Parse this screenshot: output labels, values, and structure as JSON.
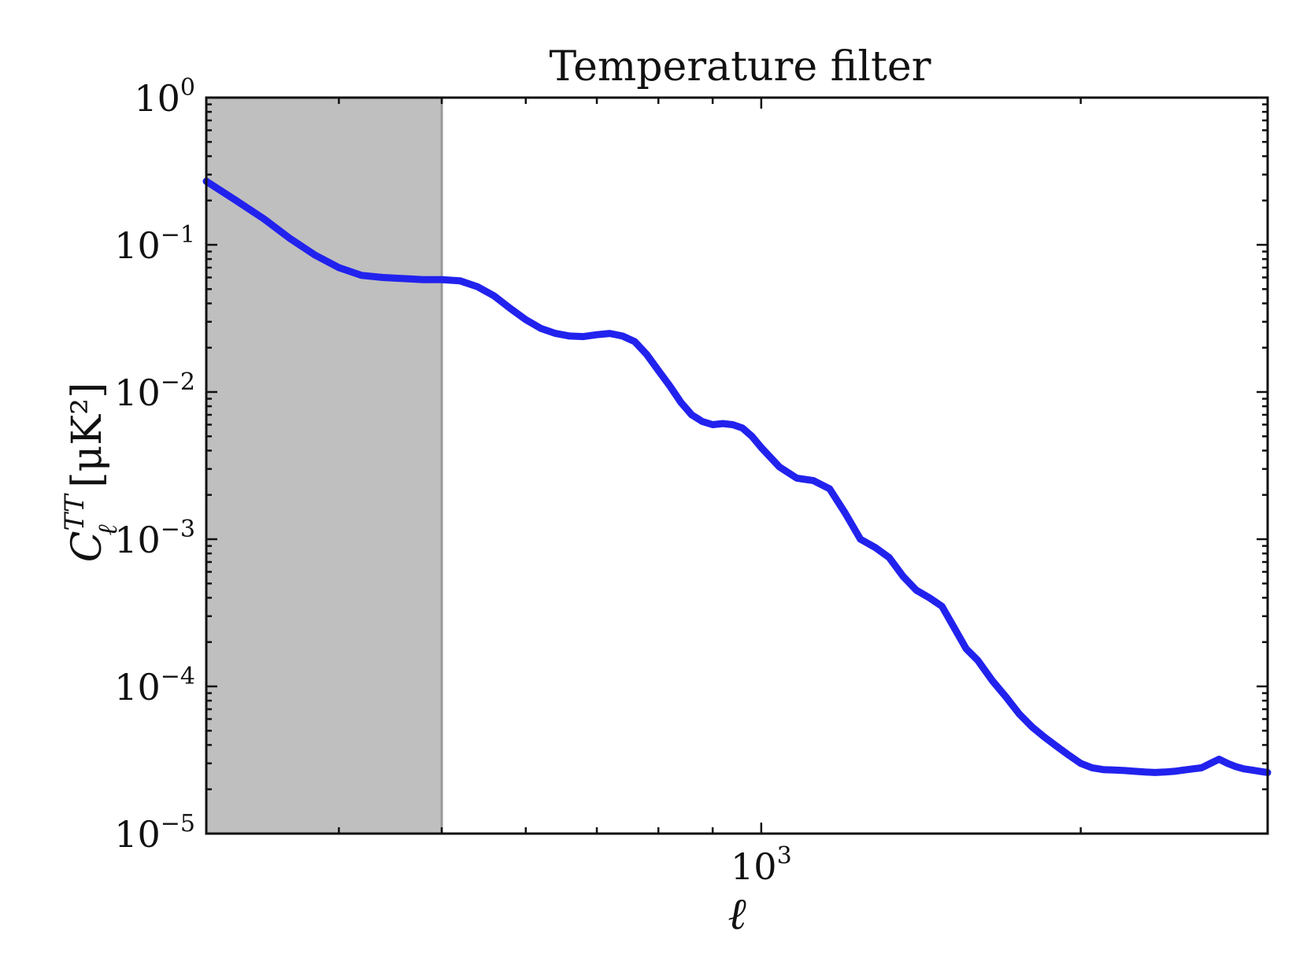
{
  "chart_data": {
    "type": "line",
    "title": "Temperature filter",
    "xlabel": "ℓ",
    "ylabel": {
      "symbol": "C",
      "superscript": "TT",
      "subscript": "ℓ",
      "unit": " [μK²]"
    },
    "x_scale": "log",
    "y_scale": "log",
    "xlim": [
      300,
      3000
    ],
    "ylim": [
      1e-05,
      1
    ],
    "x_tick_labels": [
      {
        "value": 1000,
        "base": "10",
        "exp": "3"
      }
    ],
    "y_tick_labels": [
      {
        "value": 1,
        "base": "10",
        "exp": "0"
      },
      {
        "value": 0.1,
        "base": "10",
        "exp": "−1"
      },
      {
        "value": 0.01,
        "base": "10",
        "exp": "−2"
      },
      {
        "value": 0.001,
        "base": "10",
        "exp": "−3"
      },
      {
        "value": 0.0001,
        "base": "10",
        "exp": "−4"
      },
      {
        "value": 1e-05,
        "base": "10",
        "exp": "−5"
      }
    ],
    "shaded_region": {
      "x_from": 300,
      "x_to": 500,
      "color": "#bfbfbf"
    },
    "grid": false,
    "legend": "none",
    "series": [
      {
        "color": "#2222ee",
        "x": [
          300,
          320,
          340,
          360,
          380,
          400,
          420,
          440,
          460,
          480,
          500,
          520,
          540,
          560,
          580,
          600,
          620,
          640,
          660,
          680,
          700,
          720,
          740,
          760,
          780,
          800,
          820,
          840,
          860,
          880,
          900,
          920,
          940,
          960,
          980,
          1000,
          1040,
          1080,
          1120,
          1160,
          1200,
          1240,
          1280,
          1320,
          1360,
          1400,
          1440,
          1480,
          1520,
          1560,
          1600,
          1650,
          1700,
          1750,
          1800,
          1850,
          1900,
          1950,
          2000,
          2050,
          2100,
          2150,
          2200,
          2250,
          2300,
          2350,
          2400,
          2450,
          2500,
          2550,
          2600,
          2650,
          2700,
          2750,
          2800,
          2850,
          2900,
          2950,
          3000
        ],
        "y": [
          0.27,
          0.2,
          0.15,
          0.11,
          0.085,
          0.07,
          0.062,
          0.06,
          0.059,
          0.058,
          0.058,
          0.057,
          0.052,
          0.045,
          0.037,
          0.031,
          0.027,
          0.025,
          0.024,
          0.0238,
          0.0245,
          0.025,
          0.024,
          0.022,
          0.018,
          0.014,
          0.011,
          0.0085,
          0.007,
          0.0063,
          0.006,
          0.0061,
          0.006,
          0.0057,
          0.005,
          0.0042,
          0.0031,
          0.0026,
          0.0025,
          0.0022,
          0.0015,
          0.001,
          0.00088,
          0.00075,
          0.00056,
          0.00045,
          0.0004,
          0.00035,
          0.00025,
          0.00018,
          0.00015,
          0.00011,
          8.5e-05,
          6.5e-05,
          5.3e-05,
          4.5e-05,
          3.9e-05,
          3.4e-05,
          3e-05,
          2.8e-05,
          2.72e-05,
          2.7e-05,
          2.68e-05,
          2.65e-05,
          2.62e-05,
          2.6e-05,
          2.62e-05,
          2.65e-05,
          2.7e-05,
          2.75e-05,
          2.8e-05,
          3e-05,
          3.2e-05,
          3e-05,
          2.85e-05,
          2.75e-05,
          2.7e-05,
          2.65e-05,
          2.6e-05
        ]
      }
    ]
  }
}
